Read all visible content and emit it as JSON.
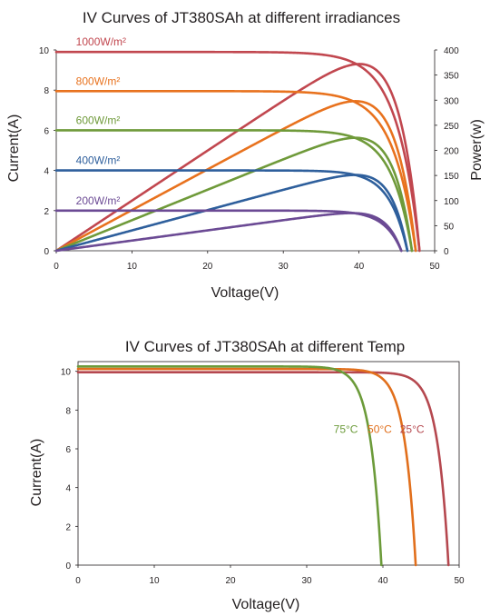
{
  "colors": {
    "1000W/m²": "#c1474f",
    "800W/m²": "#e8721e",
    "600W/m²": "#6f9a3a",
    "400W/m²": "#2e5f9c",
    "200W/m²": "#6b4a94",
    "25°C": "#b5484f",
    "50°C": "#e16f1c",
    "75°C": "#6c9b3a"
  },
  "chart_data": [
    {
      "type": "line",
      "title": "IV Curves of JT380SAh at different irradiances",
      "xlabel": "Voltage(V)",
      "ylabel": "Current(A)",
      "y2label": "Power(w)",
      "xlim": [
        0,
        50
      ],
      "ylim": [
        0,
        10
      ],
      "y2lim": [
        0,
        400
      ],
      "xticks": [
        0,
        10,
        20,
        30,
        40,
        50
      ],
      "yticks": [
        0,
        2,
        4,
        6,
        8,
        10
      ],
      "y2ticks": [
        0,
        50,
        100,
        150,
        200,
        250,
        300,
        350,
        400
      ],
      "grid": false,
      "series": [
        {
          "name": "1000W/m²",
          "isc": 9.9,
          "voc": 48.0,
          "vmp": 40.0,
          "pmax": 372
        },
        {
          "name": "800W/m²",
          "isc": 7.95,
          "voc": 47.5,
          "vmp": 39.5,
          "pmax": 298
        },
        {
          "name": "600W/m²",
          "isc": 6.0,
          "voc": 47.0,
          "vmp": 39.5,
          "pmax": 225
        },
        {
          "name": "400W/m²",
          "isc": 4.0,
          "voc": 46.4,
          "vmp": 39.5,
          "pmax": 151
        },
        {
          "name": "200W/m²",
          "isc": 2.0,
          "voc": 45.6,
          "vmp": 39.0,
          "pmax": 75
        }
      ]
    },
    {
      "type": "line",
      "title": "IV Curves of JT380SAh at different Temp",
      "xlabel": "Voltage(V)",
      "ylabel": "Current(A)",
      "xlim": [
        0,
        50
      ],
      "ylim": [
        0,
        10.5
      ],
      "xticks": [
        0,
        10,
        20,
        30,
        40,
        50
      ],
      "yticks": [
        0,
        2,
        4,
        6,
        8,
        10
      ],
      "grid": false,
      "series": [
        {
          "name": "25°C",
          "isc": 9.95,
          "voc": 48.6
        },
        {
          "name": "50°C",
          "isc": 10.12,
          "voc": 44.3
        },
        {
          "name": "75°C",
          "isc": 10.25,
          "voc": 39.8
        }
      ]
    }
  ]
}
